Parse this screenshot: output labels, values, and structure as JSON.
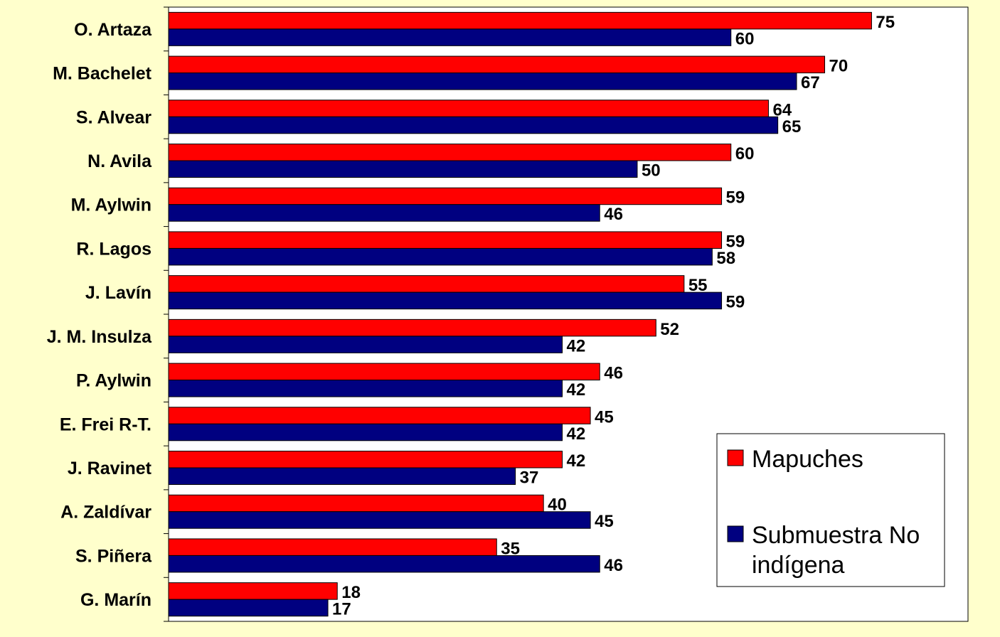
{
  "chart_data": {
    "type": "bar",
    "orientation": "horizontal",
    "categories": [
      "O. Artaza",
      "M. Bachelet",
      "S. Alvear",
      "N. Avila",
      "M. Aylwin",
      "R. Lagos",
      "J. Lavín",
      "J. M. Insulza",
      "P. Aylwin",
      "E. Frei R-T.",
      "J. Ravinet",
      "A. Zaldívar",
      "S. Piñera",
      "G. Marín"
    ],
    "series": [
      {
        "name": "Mapuches",
        "color": "#ff0000",
        "values": [
          75,
          70,
          64,
          60,
          59,
          59,
          55,
          52,
          46,
          45,
          42,
          40,
          35,
          18
        ]
      },
      {
        "name": "Submuestra No indígena",
        "color": "#000080",
        "values": [
          60,
          67,
          65,
          50,
          46,
          58,
          59,
          42,
          42,
          42,
          37,
          45,
          46,
          17
        ]
      }
    ],
    "xlim": [
      0,
      80
    ],
    "grid": false,
    "legend_placement": "bottom-right",
    "legend": [
      {
        "lines": [
          "Mapuches"
        ],
        "color": "#ff0000"
      },
      {
        "lines": [
          "Submuestra No",
          "indígena"
        ],
        "color": "#000080"
      }
    ],
    "background_color": "#ffffcc",
    "plot_background_color": "#ffffff"
  }
}
